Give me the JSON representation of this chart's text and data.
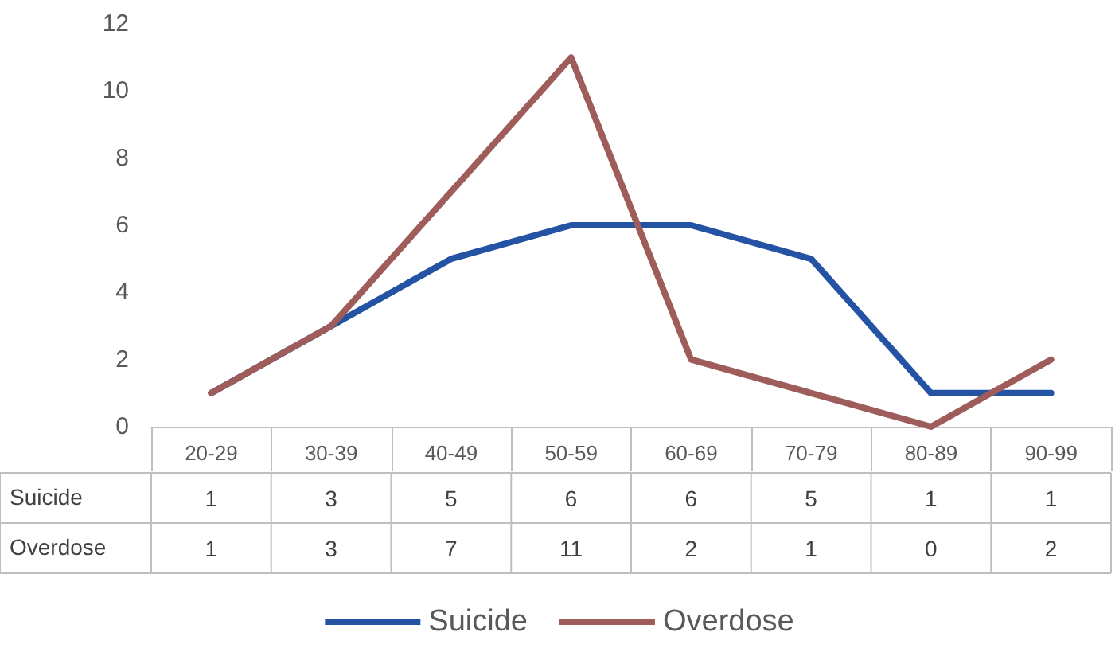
{
  "chart_data": {
    "type": "line",
    "categories": [
      "20-29",
      "30-39",
      "40-49",
      "50-59",
      "60-69",
      "70-79",
      "80-89",
      "90-99"
    ],
    "series": [
      {
        "name": "Suicide",
        "color": "#2553a3",
        "values": [
          1,
          3,
          5,
          6,
          6,
          5,
          1,
          1
        ]
      },
      {
        "name": "Overdose",
        "color": "#9e5d5a",
        "values": [
          1,
          3,
          7,
          11,
          2,
          1,
          0,
          2
        ]
      }
    ],
    "ylim": [
      0,
      12
    ],
    "yticks": [
      0,
      2,
      4,
      6,
      8,
      10,
      12
    ],
    "grid": false,
    "legend": "bottom",
    "marker": "none",
    "line_style": "solid",
    "data_labels": true
  }
}
